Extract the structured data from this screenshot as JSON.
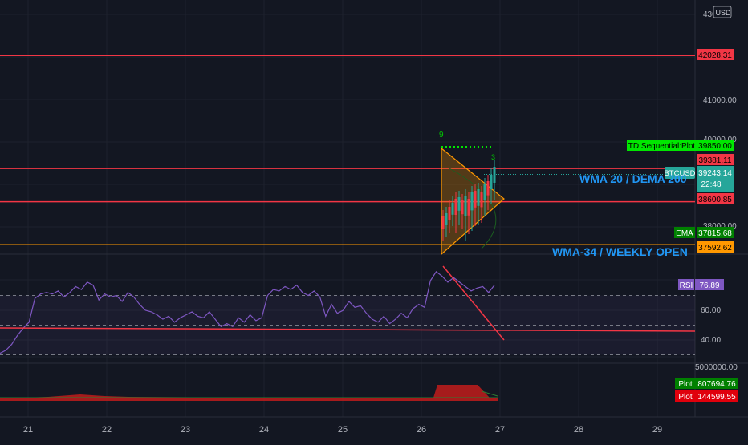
{
  "currency": "USD",
  "price_axis": {
    "ticks": [
      "430",
      "41000.00",
      "40000.00",
      "38000.00"
    ]
  },
  "horizontal_lines": [
    {
      "price": 42028.31,
      "label": "42028.31",
      "color": "#f23645",
      "y_value": 42028.31
    },
    {
      "price": 39381.11,
      "label": "39381.11",
      "color": "#f23645"
    },
    {
      "price": 38600.85,
      "label": "38600.85",
      "color": "#f23645"
    },
    {
      "price": 37592.62,
      "label": "37592.62",
      "color": "#ff9800"
    }
  ],
  "badges": {
    "td_sequential": {
      "name": "TD Sequential:Plot",
      "value": "39850.00",
      "color": "#00e600"
    },
    "btcusd": {
      "name": "BTCUSD",
      "value": "39243.14",
      "countdown": "22:48",
      "color": "#26a69a"
    },
    "ema": {
      "name": "EMA",
      "value": "37815.68",
      "color": "#008000"
    },
    "rsi": {
      "name": "RSI",
      "value": "76.89",
      "color": "#7e57c2"
    },
    "plot_green": {
      "name": "Plot",
      "value": "807694.76",
      "color": "#008000"
    },
    "plot_red": {
      "name": "Plot",
      "value": "144599.55",
      "color": "#e0000c"
    }
  },
  "annotations": {
    "wma20": "WMA 20 / DEMA 200",
    "wma34": "WMA-34 / WEEKLY OPEN",
    "td_count_top": "9",
    "td_count_right": "3"
  },
  "rsi_axis": {
    "ticks": [
      "60.00",
      "40.00"
    ]
  },
  "volume_axis": {
    "ticks": [
      "5000000.00"
    ]
  },
  "x_axis": {
    "labels": [
      "21",
      "22",
      "23",
      "24",
      "25",
      "26",
      "27",
      "28",
      "29"
    ]
  },
  "chart_data": [
    {
      "type": "line",
      "title": "",
      "xlabel": "",
      "ylabel": "",
      "x_labels": [
        "21",
        "22",
        "23",
        "24",
        "25",
        "26",
        "27",
        "28",
        "29"
      ],
      "ylim": [
        37592.62,
        43000
      ],
      "series": [
        {
          "name": "TD Sequential:Plot",
          "values": [
            39850.0
          ]
        },
        {
          "name": "BTCUSD",
          "values": [
            39243.14
          ]
        },
        {
          "name": "EMA",
          "values": [
            37815.68
          ]
        }
      ],
      "levels": [
        42028.31,
        39381.11,
        38600.85,
        37592.62
      ]
    },
    {
      "type": "line",
      "title": "",
      "ylim": [
        30,
        80
      ],
      "series": [
        {
          "name": "RSI",
          "values": [
            31,
            33,
            37,
            43,
            48,
            52,
            68,
            71,
            72,
            71,
            73,
            69,
            72,
            76,
            74,
            79,
            77,
            67,
            71,
            69,
            70,
            66,
            72,
            69,
            64,
            60,
            59,
            57,
            54,
            56,
            52,
            55,
            57,
            59,
            56,
            55,
            59,
            54,
            49,
            51,
            49,
            55,
            52,
            57,
            53,
            55,
            70,
            74,
            73,
            76,
            74,
            77,
            72,
            70,
            73,
            69,
            56,
            64,
            58,
            60,
            66,
            62,
            63,
            58,
            54,
            52,
            56,
            51,
            54,
            58,
            55,
            61,
            64,
            62,
            80,
            86,
            83,
            79,
            82,
            79,
            76,
            73,
            75,
            76,
            72,
            76.89
          ]
        }
      ],
      "reference_lines": [
        70,
        50,
        30
      ]
    },
    {
      "type": "area",
      "title": "",
      "series": [
        {
          "name": "Plot",
          "values": [
            807694.76
          ]
        },
        {
          "name": "Plot",
          "values": [
            144599.55
          ]
        }
      ]
    }
  ]
}
